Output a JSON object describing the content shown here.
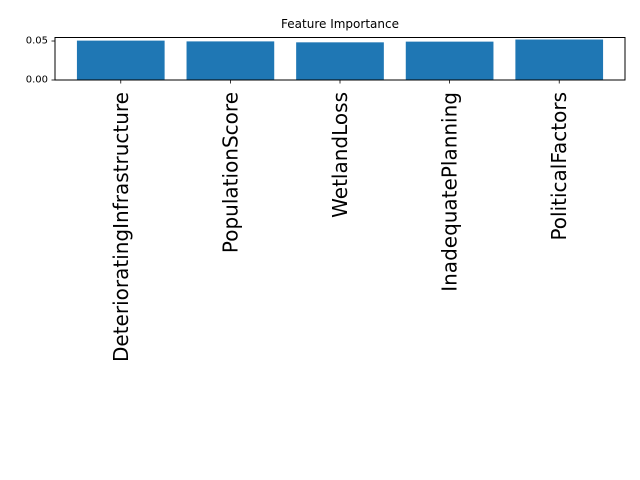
{
  "chart_data": {
    "type": "bar",
    "title": "Feature Importance",
    "xlabel": "",
    "ylabel": "",
    "categories": [
      "DeterioratingInfrastructure",
      "PopulationScore",
      "WetlandLoss",
      "InadequatePlanning",
      "PoliticalFactors"
    ],
    "values": [
      0.0505,
      0.0495,
      0.0483,
      0.0492,
      0.0519
    ],
    "ylim": [
      0,
      0.0545
    ],
    "yticks": [
      0.0,
      0.05
    ],
    "ytick_labels": [
      "0.00",
      "0.05"
    ],
    "grid": false,
    "bar_color": "#1f77b4"
  }
}
